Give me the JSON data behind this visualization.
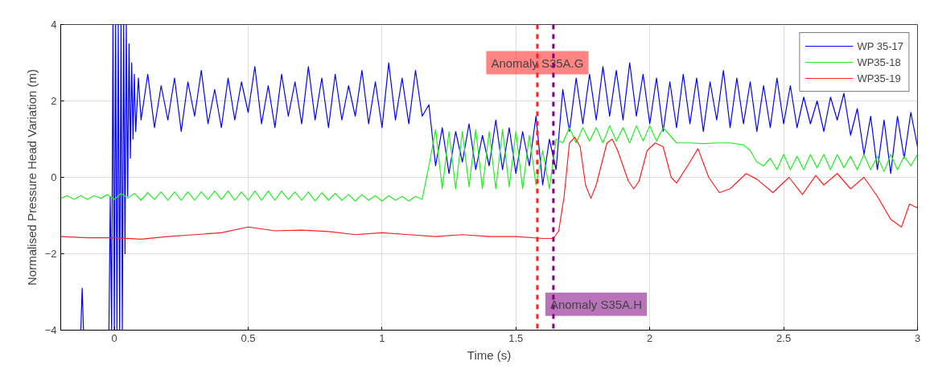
{
  "chart_data": {
    "type": "line",
    "xlabel": "Time (s)",
    "ylabel": "Normalised Pressure Head Variation (m)",
    "xlim": [
      -0.2,
      3
    ],
    "ylim": [
      -4,
      4
    ],
    "xticks": [
      0,
      0.5,
      1,
      1.5,
      2,
      2.5,
      3
    ],
    "yticks": [
      -4,
      -2,
      0,
      2,
      4
    ],
    "grid": true,
    "legend": "top right",
    "line_style": "solid",
    "series": [
      {
        "name": "WP 35-17",
        "color": "#0000ff",
        "x": [
          -0.125,
          -0.12,
          -0.115,
          -0.02,
          -0.015,
          -0.01,
          -0.005,
          0,
          0.005,
          0.01,
          0.015,
          0.02,
          0.025,
          0.03,
          0.035,
          0.04,
          0.045,
          0.05,
          0.055,
          0.06,
          0.065,
          0.07,
          0.075,
          0.08,
          0.09,
          0.1,
          0.125,
          0.15,
          0.175,
          0.2,
          0.225,
          0.25,
          0.275,
          0.3,
          0.325,
          0.35,
          0.375,
          0.4,
          0.425,
          0.45,
          0.475,
          0.5,
          0.525,
          0.55,
          0.575,
          0.6,
          0.625,
          0.65,
          0.675,
          0.7,
          0.725,
          0.75,
          0.775,
          0.8,
          0.825,
          0.85,
          0.875,
          0.9,
          0.925,
          0.95,
          0.975,
          1.0,
          1.025,
          1.05,
          1.075,
          1.1,
          1.125,
          1.15,
          1.175,
          1.2,
          1.225,
          1.25,
          1.275,
          1.3,
          1.325,
          1.35,
          1.375,
          1.4,
          1.425,
          1.45,
          1.475,
          1.5,
          1.525,
          1.55,
          1.575,
          1.6,
          1.625,
          1.65,
          1.675,
          1.7,
          1.725,
          1.75,
          1.775,
          1.8,
          1.825,
          1.85,
          1.875,
          1.9,
          1.925,
          1.95,
          1.975,
          2.0,
          2.025,
          2.05,
          2.075,
          2.1,
          2.125,
          2.15,
          2.175,
          2.2,
          2.225,
          2.25,
          2.275,
          2.3,
          2.325,
          2.35,
          2.375,
          2.4,
          2.425,
          2.45,
          2.475,
          2.5,
          2.525,
          2.55,
          2.575,
          2.6,
          2.625,
          2.65,
          2.675,
          2.7,
          2.725,
          2.75,
          2.775,
          2.8,
          2.825,
          2.85,
          2.875,
          2.9,
          2.925,
          2.95,
          2.975,
          3.0
        ],
        "values": [
          -4,
          -2.9,
          -4,
          -4,
          -0.5,
          -4,
          4,
          -4,
          4,
          -4,
          4,
          -4,
          4,
          -4,
          4,
          -2,
          4,
          -0.5,
          3.5,
          0.5,
          3,
          1,
          2.7,
          1.2,
          2.6,
          1.5,
          2.7,
          1.3,
          2.4,
          1.5,
          2.6,
          1.2,
          2.5,
          1.6,
          2.8,
          1.4,
          2.3,
          1.3,
          2.6,
          1.5,
          2.5,
          1.7,
          2.9,
          1.4,
          2.4,
          1.3,
          2.7,
          1.6,
          2.5,
          1.4,
          2.9,
          1.5,
          2.6,
          1.3,
          2.7,
          1.5,
          2.4,
          1.6,
          2.8,
          1.4,
          2.5,
          1.3,
          3.0,
          1.5,
          2.6,
          1.4,
          2.8,
          1.6,
          1.9,
          0.3,
          1.3,
          0.1,
          1.2,
          0.4,
          1.4,
          0.2,
          1.1,
          0.3,
          1.5,
          0.2,
          1.3,
          0.1,
          1.2,
          0.3,
          1.6,
          -0.2,
          1.0,
          0.2,
          2.3,
          1.2,
          2.6,
          1.4,
          2.7,
          1.5,
          2.9,
          1.6,
          2.8,
          1.5,
          3.0,
          1.6,
          2.7,
          1.4,
          2.6,
          1.2,
          2.5,
          1.3,
          2.7,
          1.4,
          2.6,
          1.2,
          2.5,
          1.5,
          2.8,
          1.3,
          2.6,
          1.4,
          2.5,
          1.2,
          2.4,
          1.3,
          2.6,
          1.4,
          2.4,
          1.3,
          2.1,
          1.4,
          2.0,
          1.2,
          2.1,
          1.5,
          2.2,
          1.1,
          1.8,
          0.6,
          1.6,
          0.2,
          1.5,
          0.1,
          1.6,
          0.5,
          1.7,
          0.8
        ]
      },
      {
        "name": "WP35-18",
        "color": "#22ee22",
        "x": [
          -0.2,
          -0.175,
          -0.15,
          -0.125,
          -0.1,
          -0.075,
          -0.05,
          -0.025,
          0,
          0.025,
          0.05,
          0.075,
          0.1,
          0.125,
          0.15,
          0.175,
          0.2,
          0.225,
          0.25,
          0.275,
          0.3,
          0.325,
          0.35,
          0.375,
          0.4,
          0.425,
          0.45,
          0.475,
          0.5,
          0.525,
          0.55,
          0.575,
          0.6,
          0.625,
          0.65,
          0.675,
          0.7,
          0.725,
          0.75,
          0.775,
          0.8,
          0.825,
          0.85,
          0.875,
          0.9,
          0.925,
          0.95,
          0.975,
          1.0,
          1.025,
          1.05,
          1.075,
          1.1,
          1.125,
          1.15,
          1.175,
          1.2,
          1.225,
          1.25,
          1.275,
          1.3,
          1.325,
          1.35,
          1.375,
          1.4,
          1.425,
          1.45,
          1.475,
          1.5,
          1.525,
          1.55,
          1.575,
          1.6,
          1.625,
          1.65,
          1.675,
          1.7,
          1.725,
          1.75,
          1.775,
          1.8,
          1.825,
          1.85,
          1.875,
          1.9,
          1.925,
          1.95,
          1.975,
          2.0,
          2.025,
          2.05,
          2.1,
          2.15,
          2.2,
          2.25,
          2.3,
          2.35,
          2.375,
          2.4,
          2.425,
          2.45,
          2.475,
          2.5,
          2.525,
          2.55,
          2.575,
          2.6,
          2.625,
          2.65,
          2.675,
          2.7,
          2.725,
          2.75,
          2.775,
          2.8,
          2.825,
          2.85,
          2.875,
          2.9,
          2.925,
          2.95,
          2.975,
          3.0
        ],
        "values": [
          -0.55,
          -0.48,
          -0.58,
          -0.48,
          -0.58,
          -0.48,
          -0.55,
          -0.45,
          -0.58,
          -0.42,
          -0.55,
          -0.42,
          -0.6,
          -0.4,
          -0.58,
          -0.38,
          -0.6,
          -0.38,
          -0.6,
          -0.38,
          -0.6,
          -0.38,
          -0.58,
          -0.36,
          -0.58,
          -0.36,
          -0.6,
          -0.38,
          -0.6,
          -0.36,
          -0.6,
          -0.36,
          -0.6,
          -0.36,
          -0.58,
          -0.38,
          -0.6,
          -0.38,
          -0.62,
          -0.4,
          -0.6,
          -0.42,
          -0.6,
          -0.45,
          -0.62,
          -0.45,
          -0.6,
          -0.48,
          -0.62,
          -0.48,
          -0.6,
          -0.5,
          -0.62,
          -0.5,
          -0.58,
          0.3,
          1.25,
          -0.3,
          1.2,
          -0.3,
          1.2,
          -0.25,
          1.25,
          -0.3,
          1.2,
          -0.3,
          1.25,
          -0.25,
          1.2,
          -0.3,
          1.1,
          -0.2,
          0.7,
          -0.3,
          1.0,
          0.9,
          1.3,
          0.9,
          1.3,
          0.95,
          1.3,
          0.9,
          1.35,
          0.95,
          1.3,
          0.9,
          1.35,
          0.95,
          1.35,
          0.95,
          1.3,
          0.9,
          0.9,
          0.88,
          0.9,
          0.9,
          0.85,
          0.7,
          0.4,
          0.3,
          0.5,
          0.2,
          0.6,
          0.2,
          0.55,
          0.2,
          0.6,
          0.25,
          0.6,
          0.2,
          0.6,
          0.25,
          0.55,
          0.2,
          0.6,
          0.2,
          0.55,
          0.15,
          0.6,
          0.2,
          0.55,
          0.3,
          0.6
        ]
      },
      {
        "name": "WP35-19",
        "color": "#ff2020",
        "x": [
          -0.2,
          -0.1,
          0,
          0.1,
          0.2,
          0.3,
          0.4,
          0.5,
          0.6,
          0.7,
          0.8,
          0.9,
          1.0,
          1.1,
          1.2,
          1.3,
          1.4,
          1.5,
          1.6,
          1.64,
          1.66,
          1.68,
          1.7,
          1.72,
          1.74,
          1.76,
          1.78,
          1.8,
          1.84,
          1.86,
          1.88,
          1.92,
          1.94,
          1.96,
          1.99,
          2.02,
          2.05,
          2.08,
          2.1,
          2.15,
          2.18,
          2.22,
          2.26,
          2.3,
          2.36,
          2.4,
          2.46,
          2.52,
          2.57,
          2.62,
          2.65,
          2.7,
          2.75,
          2.8,
          2.85,
          2.9,
          2.94,
          2.97,
          3.0
        ],
        "values": [
          -1.55,
          -1.58,
          -1.58,
          -1.62,
          -1.55,
          -1.5,
          -1.45,
          -1.3,
          -1.4,
          -1.38,
          -1.42,
          -1.5,
          -1.45,
          -1.5,
          -1.55,
          -1.5,
          -1.55,
          -1.55,
          -1.6,
          -1.6,
          -1.4,
          -0.5,
          0.9,
          1.05,
          0.8,
          -0.2,
          -0.55,
          -0.2,
          0.9,
          1.0,
          0.7,
          -0.1,
          -0.3,
          -0.1,
          0.7,
          0.9,
          0.8,
          0.0,
          -0.15,
          0.4,
          0.75,
          0.0,
          -0.4,
          -0.3,
          0.1,
          -0.05,
          -0.4,
          0.0,
          -0.45,
          0.05,
          -0.2,
          0.1,
          -0.3,
          0.0,
          -0.5,
          -1.1,
          -1.3,
          -0.7,
          -0.8
        ]
      }
    ],
    "ref_lines": [
      {
        "axis": "x",
        "value": 1.58,
        "label": "Anomaly S35A.G",
        "color": "#ff2020",
        "line_style": "dashed"
      },
      {
        "axis": "x",
        "value": 1.64,
        "label": "Anomaly S35A.H",
        "color": "#800080",
        "line_style": "dashed"
      }
    ]
  }
}
